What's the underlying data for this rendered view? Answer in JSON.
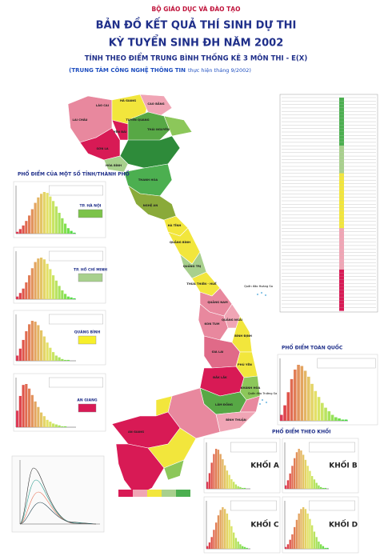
{
  "header": {
    "ministry": "BỘ GIÁO DỤC VÀ ĐÀO TẠO",
    "title": "BẢN ĐỒ KẾT QUẢ THÍ SINH DỰ THI",
    "title2": "KỲ TUYỂN SINH ĐH NĂM 2002",
    "subtitle": "TÍNH THEO ĐIỂM TRUNG BÌNH THỐNG KÊ 3 MÔN THI - E(X)",
    "credit_org": "(TRUNG TÂM CÔNG NGHỆ THÔNG TIN",
    "credit_date": "thực hiện tháng 9/2002)"
  },
  "province_section": {
    "title": "PHỔ ĐIỂM CỦA MỘT SỐ TỈNH/THÀNH PHỐ",
    "histograms": [
      {
        "label": "TP. HÀ NỘI",
        "values": [
          2,
          5,
          9,
          14,
          20,
          27,
          34,
          40,
          44,
          46,
          45,
          41,
          36,
          30,
          23,
          17,
          11,
          6,
          3,
          1
        ]
      },
      {
        "label": "TP. HỒ CHÍ MINH",
        "values": [
          3,
          7,
          12,
          19,
          27,
          35,
          42,
          46,
          47,
          45,
          40,
          34,
          27,
          21,
          15,
          10,
          6,
          3,
          2,
          1
        ]
      },
      {
        "label": "QUẢNG BÌNH",
        "values": [
          6,
          14,
          24,
          34,
          42,
          46,
          45,
          41,
          35,
          28,
          21,
          15,
          10,
          6,
          4,
          2,
          1,
          1,
          0,
          0
        ]
      },
      {
        "label": "AN GIANG",
        "values": [
          18,
          34,
          46,
          47,
          42,
          35,
          28,
          22,
          16,
          12,
          8,
          6,
          4,
          3,
          2,
          1,
          1,
          0,
          0,
          0
        ]
      }
    ]
  },
  "national": {
    "title": "PHỔ ĐIỂM TOÀN QUỐC",
    "values": [
      5,
      13,
      24,
      35,
      43,
      47,
      46,
      42,
      37,
      31,
      25,
      20,
      15,
      11,
      8,
      5,
      3,
      2,
      1,
      1
    ]
  },
  "blocks": {
    "title": "PHỔ ĐIỂM THEO KHỐI",
    "histograms": [
      {
        "label": "KHỐI A",
        "values": [
          8,
          18,
          30,
          40,
          46,
          45,
          40,
          34,
          27,
          21,
          16,
          11,
          8,
          5,
          3,
          2,
          1,
          1,
          0,
          0
        ]
      },
      {
        "label": "KHỐI B",
        "values": [
          4,
          10,
          18,
          27,
          36,
          43,
          47,
          45,
          40,
          34,
          27,
          21,
          15,
          11,
          7,
          4,
          2,
          1,
          1,
          0
        ]
      },
      {
        "label": "KHỐI C",
        "values": [
          3,
          7,
          13,
          21,
          29,
          37,
          43,
          46,
          44,
          39,
          32,
          25,
          18,
          12,
          8,
          5,
          3,
          2,
          1,
          0
        ]
      },
      {
        "label": "KHỐI D",
        "values": [
          2,
          5,
          10,
          16,
          24,
          32,
          39,
          44,
          46,
          44,
          39,
          33,
          26,
          19,
          13,
          8,
          5,
          3,
          1,
          1
        ]
      }
    ]
  },
  "map": {
    "labels": [
      "LAI CHÂU",
      "LÀO CAI",
      "HÀ GIANG",
      "CAO BẰNG",
      "TUYÊN QUANG",
      "YÊN BÁI",
      "THÁI NGUYÊN",
      "SƠN LA",
      "HÒA BÌNH",
      "THANH HÓA",
      "NGHỆ AN",
      "HÀ TĨNH",
      "QUẢNG BÌNH",
      "QUẢNG TRỊ",
      "THỪA THIÊN - HUẾ",
      "QUẢNG NAM",
      "QUẢNG NGÃI",
      "KON TUM",
      "BÌNH ĐỊNH",
      "GIA LAI",
      "PHÚ YÊN",
      "ĐẮK LẮK",
      "KHÁNH HÒA",
      "LÂM ĐỒNG",
      "BÌNH THUẬN",
      "AN GIANG"
    ],
    "islands": [
      "Quần đảo Hoàng Sa",
      "Quần đảo Trường Sa"
    ]
  }
}
